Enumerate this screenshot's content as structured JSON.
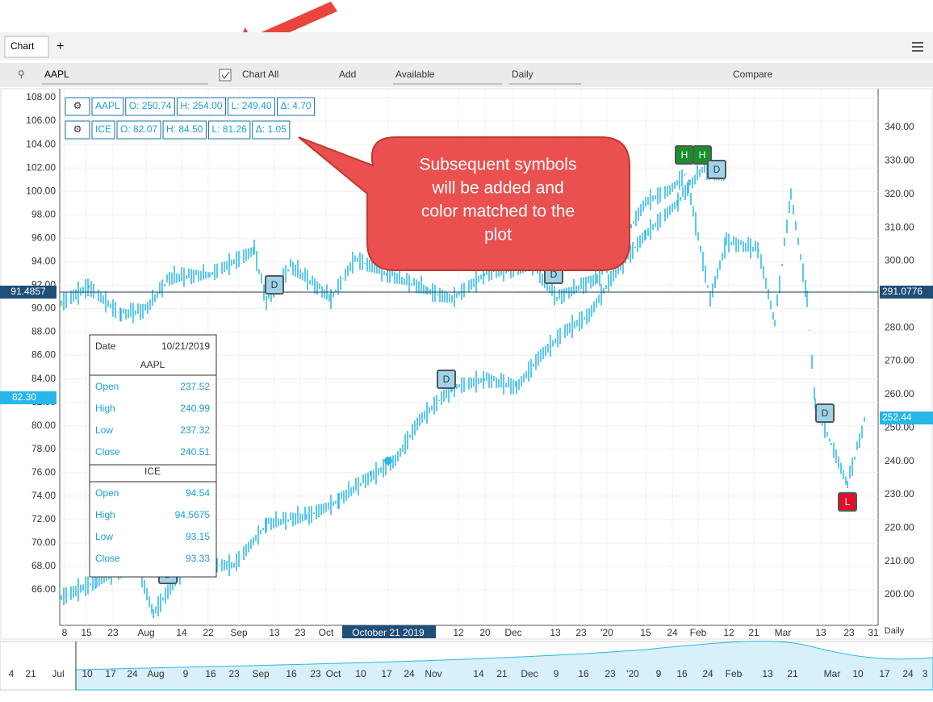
{
  "tabs": [
    "Chart",
    "+"
  ],
  "toolbar": {
    "symbol": "AAPL",
    "chart_all": "Chart All",
    "add": "Add",
    "available": "Available",
    "period": "Daily",
    "compare": "Compare"
  },
  "legend": [
    {
      "symbol": "AAPL",
      "open": "O: 250.74",
      "high": "H: 254.00",
      "low": "L: 249.40",
      "change": "Δ: 4.70"
    },
    {
      "symbol": "ICE",
      "open": "O: 82.07",
      "high": "H: 84.50",
      "low": "L: 81.26",
      "change": "Δ: 1.05"
    }
  ],
  "left_axis": [
    "108.00",
    "106.00",
    "104.00",
    "102.00",
    "100.00",
    "98.00",
    "96.00",
    "94.00",
    "92.00",
    "90.00",
    "88.00",
    "86.00",
    "84.00",
    "82.00",
    "80.00",
    "78.00",
    "76.00",
    "74.00",
    "72.00",
    "70.00",
    "68.00",
    "66.00"
  ],
  "right_axis": [
    "340.00",
    "330.00",
    "320.00",
    "310.00",
    "300.00",
    "290.00",
    "280.00",
    "270.00",
    "260.00",
    "250.00",
    "240.00",
    "230.00",
    "220.00",
    "210.00",
    "200.00"
  ],
  "crosshair": {
    "left": "91.4857",
    "right": "291.0776",
    "left_current": "82.30",
    "right_current": "252.44"
  },
  "callout": [
    "Subsequent symbols",
    "will be added and",
    "color matched to the",
    "plot"
  ],
  "tooltip": {
    "date_label": "Date",
    "date": "10/21/2019",
    "sections": [
      {
        "symbol": "AAPL",
        "rows": [
          [
            "Open",
            "237.52"
          ],
          [
            "High",
            "240.99"
          ],
          [
            "Low",
            "237.32"
          ],
          [
            "Close",
            "240.51"
          ]
        ]
      },
      {
        "symbol": "ICE",
        "rows": [
          [
            "Open",
            "94.54"
          ],
          [
            "High",
            "94.5675"
          ],
          [
            "Low",
            "93.15"
          ],
          [
            "Close",
            "93.33"
          ]
        ]
      }
    ]
  },
  "x_axis": [
    "8",
    "15",
    "23",
    "Aug",
    "14",
    "22",
    "Sep",
    "13",
    "23",
    "Oct",
    "October 21 2019",
    "12",
    "20",
    "Dec",
    "13",
    "23",
    "'20",
    "15",
    "24",
    "Feb",
    "12",
    "21",
    "Mar",
    "13",
    "23",
    "31"
  ],
  "x_axis_period": "Daily",
  "navigator": [
    "4",
    "21",
    "Jul",
    "10",
    "17",
    "24",
    "Aug",
    "9",
    "16",
    "23",
    "Sep",
    "16",
    "23",
    "Oct",
    "10",
    "17",
    "24",
    "Nov",
    "14",
    "21",
    "Dec",
    "9",
    "16",
    "23",
    "'20",
    "9",
    "16",
    "24",
    "Feb",
    "13",
    "21",
    "Mar",
    "10",
    "17",
    "24",
    "3"
  ],
  "events": [
    "D",
    "D",
    "D",
    "H",
    "H",
    "D",
    "D",
    "L",
    "D"
  ]
}
